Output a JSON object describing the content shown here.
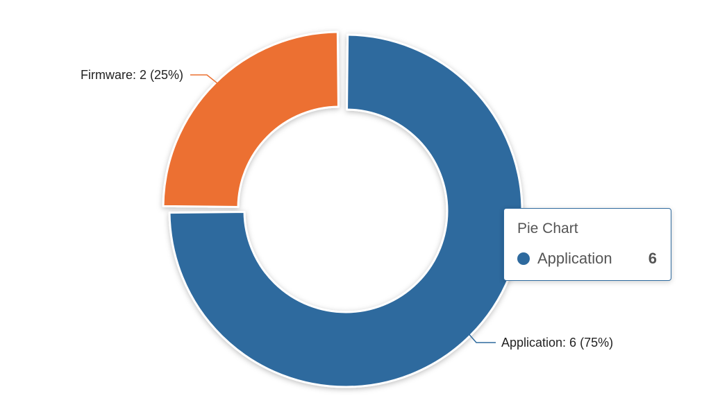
{
  "chart_data": {
    "type": "pie",
    "variant": "donut",
    "categories": [
      "Firmware",
      "Application"
    ],
    "values": [
      2,
      6
    ],
    "percents": [
      25,
      75
    ],
    "colors": [
      "#ec7030",
      "#2e6a9e"
    ],
    "slice_labels": [
      "Firmware: 2 (25%)",
      "Application: 6 (75%)"
    ],
    "legend": "none"
  },
  "tooltip": {
    "title": "Pie Chart",
    "series_name": "Application",
    "value": "6",
    "color": "#2e6a9e"
  }
}
